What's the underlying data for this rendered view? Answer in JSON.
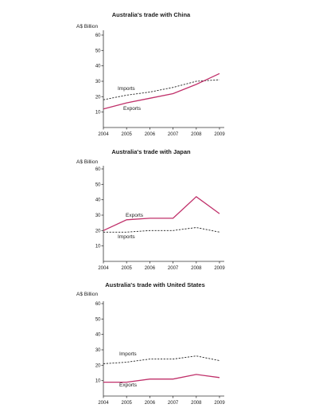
{
  "chart_data": [
    {
      "type": "line",
      "title": "Australia's trade with China",
      "ylabel": "A$ Billion",
      "x": [
        2004,
        2005,
        2006,
        2007,
        2008,
        2009
      ],
      "ylim": [
        0,
        60
      ],
      "yticks": [
        10,
        20,
        30,
        40,
        50,
        60
      ],
      "series": [
        {
          "name": "Imports",
          "values": [
            18,
            21,
            23,
            26,
            30,
            31
          ],
          "style": "dashed",
          "color": "#222222"
        },
        {
          "name": "Exports",
          "values": [
            12,
            16,
            19,
            22,
            28,
            35
          ],
          "style": "solid",
          "color": "#c0306a"
        }
      ]
    },
    {
      "type": "line",
      "title": "Australia's trade with Japan",
      "ylabel": "A$ Billion",
      "x": [
        2004,
        2005,
        2006,
        2007,
        2008,
        2009
      ],
      "ylim": [
        0,
        60
      ],
      "yticks": [
        10,
        20,
        30,
        40,
        50,
        60
      ],
      "series": [
        {
          "name": "Exports",
          "values": [
            20,
            27,
            28,
            28,
            42,
            31
          ],
          "style": "solid",
          "color": "#c0306a"
        },
        {
          "name": "Imports",
          "values": [
            19,
            19,
            20,
            20,
            22,
            19
          ],
          "style": "dashed",
          "color": "#222222"
        }
      ]
    },
    {
      "type": "line",
      "title": "Australia's trade with United States",
      "ylabel": "A$ Billion",
      "x": [
        2004,
        2005,
        2006,
        2007,
        2008,
        2009
      ],
      "ylim": [
        0,
        60
      ],
      "yticks": [
        10,
        20,
        30,
        40,
        50,
        60
      ],
      "series": [
        {
          "name": "Imports",
          "values": [
            21,
            22,
            24,
            24,
            26,
            23
          ],
          "style": "dashed",
          "color": "#222222"
        },
        {
          "name": "Exports",
          "values": [
            9,
            9,
            11,
            11,
            14,
            12
          ],
          "style": "solid",
          "color": "#c0306a"
        }
      ]
    }
  ]
}
